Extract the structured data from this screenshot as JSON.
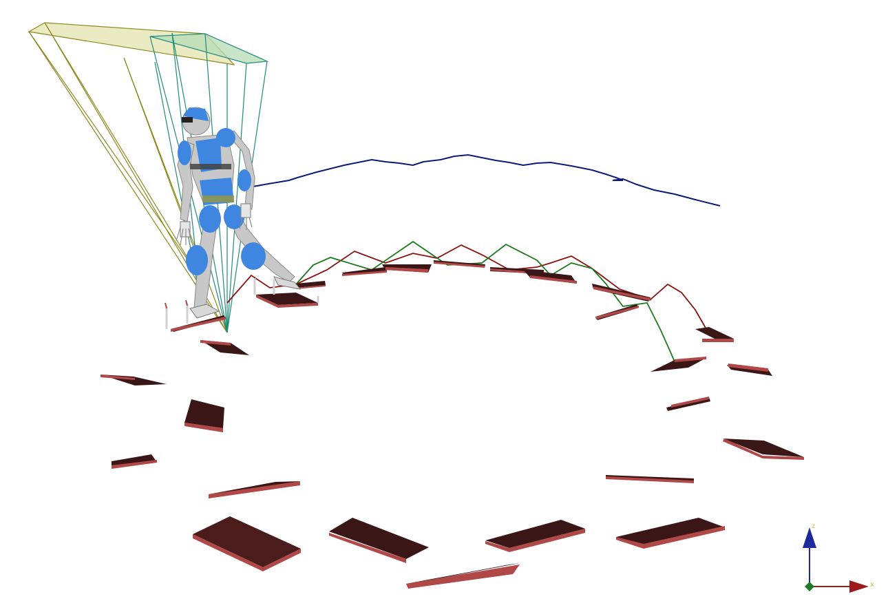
{
  "axes": {
    "z_label": "z",
    "x_label": "x"
  },
  "colors": {
    "background": "#ffffff",
    "plank_top": "#3a1616",
    "plank_edge": "#b04848",
    "trajectory_blue": "#0c1a78",
    "foot_path_red": "#8c1010",
    "foot_path_green": "#1b7a1b",
    "support_yellow": "#8a8a1e",
    "support_teal": "#1e8a7a",
    "robot_blue": "#3f86e0",
    "robot_gray": "#c8c8c8",
    "axis_z": "#1c2a9c",
    "axis_x": "#9c1c1c",
    "axis_y": "#1c7a2a"
  }
}
